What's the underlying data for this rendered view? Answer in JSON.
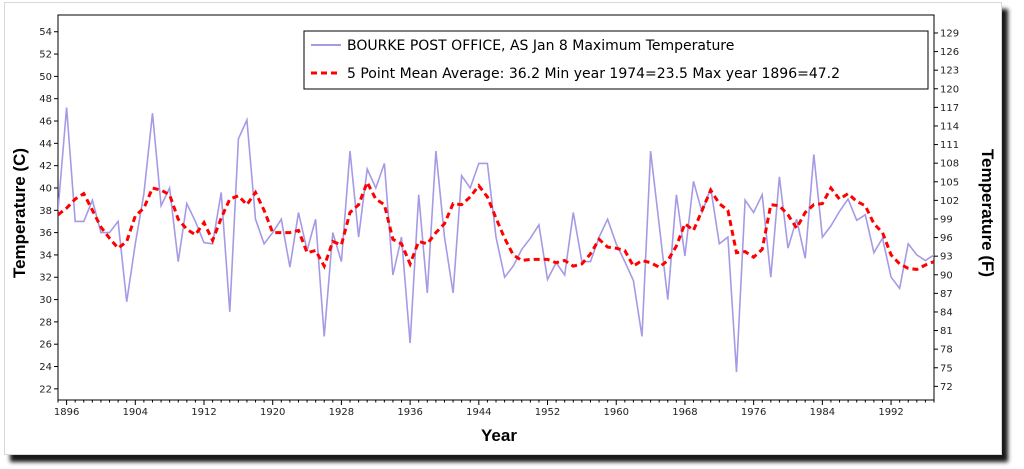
{
  "chart_data": {
    "type": "line",
    "xlabel": "Year",
    "ylabel": "Temperature (C)",
    "ylabel_right": "Temperature (F)",
    "xlim": [
      1895,
      1997
    ],
    "ylim": [
      21,
      55.5
    ],
    "x_ticks": [
      "1896",
      "1904",
      "1912",
      "1920",
      "1928",
      "1936",
      "1944",
      "1952",
      "1960",
      "1968",
      "1976",
      "1984",
      "1992"
    ],
    "y_ticks": [
      "22",
      "24",
      "26",
      "28",
      "30",
      "32",
      "34",
      "36",
      "38",
      "40",
      "42",
      "44",
      "46",
      "48",
      "50",
      "52",
      "54"
    ],
    "y_ticks_right": [
      "72",
      "75",
      "78",
      "81",
      "84",
      "87",
      "90",
      "93",
      "96",
      "99",
      "102",
      "105",
      "108",
      "111",
      "114",
      "117",
      "120",
      "123",
      "126",
      "129"
    ],
    "grid": false,
    "legend_position": "top-right",
    "colors": {
      "raw": "#a69ae6",
      "mean": "#ff0000"
    },
    "series": [
      {
        "name": "BOURKE POST OFFICE, AS  Jan 8  Maximum Temperature",
        "style": "solid",
        "x": [
          1895,
          1896,
          1897,
          1898,
          1899,
          1900,
          1901,
          1902,
          1903,
          1904,
          1905,
          1906,
          1907,
          1908,
          1909,
          1910,
          1911,
          1912,
          1913,
          1914,
          1915,
          1916,
          1917,
          1918,
          1919,
          1920,
          1921,
          1922,
          1923,
          1924,
          1925,
          1926,
          1927,
          1928,
          1929,
          1930,
          1931,
          1932,
          1933,
          1934,
          1935,
          1936,
          1937,
          1938,
          1939,
          1940,
          1941,
          1942,
          1943,
          1944,
          1945,
          1946,
          1947,
          1948,
          1949,
          1950,
          1951,
          1952,
          1953,
          1954,
          1955,
          1956,
          1957,
          1958,
          1959,
          1960,
          1961,
          1962,
          1963,
          1964,
          1965,
          1966,
          1967,
          1968,
          1969,
          1970,
          1971,
          1972,
          1973,
          1974,
          1975,
          1976,
          1977,
          1978,
          1979,
          1980,
          1981,
          1982,
          1983,
          1984,
          1985,
          1986,
          1987,
          1988,
          1989,
          1990,
          1991,
          1992,
          1993,
          1994,
          1995,
          1996,
          1997
        ],
        "values": [
          38.0,
          47.2,
          37.0,
          37.0,
          38.9,
          36.0,
          36.0,
          37.0,
          29.8,
          35.0,
          39.5,
          46.7,
          38.4,
          40.0,
          33.4,
          38.6,
          37.0,
          35.1,
          35.0,
          39.6,
          28.9,
          44.4,
          46.1,
          37.2,
          35.0,
          36.0,
          37.2,
          32.9,
          37.8,
          34.4,
          37.2,
          26.7,
          36.0,
          33.4,
          43.3,
          35.6,
          41.7,
          40.0,
          42.2,
          32.2,
          35.6,
          26.1,
          39.4,
          30.6,
          43.3,
          35.6,
          30.6,
          41.1,
          40.0,
          42.2,
          42.2,
          35.6,
          32.0,
          33.0,
          34.5,
          35.5,
          36.7,
          31.8,
          33.3,
          32.2,
          37.8,
          33.4,
          33.4,
          35.6,
          37.2,
          35.0,
          33.4,
          31.7,
          26.7,
          43.3,
          36.7,
          30.0,
          39.4,
          33.9,
          40.6,
          37.8,
          40.0,
          35.0,
          35.6,
          23.5,
          38.9,
          37.8,
          39.4,
          32.0,
          41.0,
          34.6,
          37.2,
          33.7,
          43.0,
          35.6,
          36.6,
          37.9,
          39.0,
          37.1,
          37.6,
          34.2,
          35.5,
          32.0,
          31.0,
          35.0,
          34.0,
          33.5,
          34.0
        ]
      },
      {
        "name": "5 Point Mean  Average: 36.2  Min year 1974=23.5  Max year 1896=47.2",
        "style": "dashed",
        "x": [
          1895,
          1896,
          1897,
          1898,
          1899,
          1900,
          1901,
          1902,
          1903,
          1904,
          1905,
          1906,
          1907,
          1908,
          1909,
          1910,
          1911,
          1912,
          1913,
          1914,
          1915,
          1916,
          1917,
          1918,
          1919,
          1920,
          1921,
          1922,
          1923,
          1924,
          1925,
          1926,
          1927,
          1928,
          1929,
          1930,
          1931,
          1932,
          1933,
          1934,
          1935,
          1936,
          1937,
          1938,
          1939,
          1940,
          1941,
          1942,
          1943,
          1944,
          1945,
          1946,
          1947,
          1948,
          1949,
          1950,
          1951,
          1952,
          1953,
          1954,
          1955,
          1956,
          1957,
          1958,
          1959,
          1960,
          1961,
          1962,
          1963,
          1964,
          1965,
          1966,
          1967,
          1968,
          1969,
          1970,
          1971,
          1972,
          1973,
          1974,
          1975,
          1976,
          1977,
          1978,
          1979,
          1980,
          1981,
          1982,
          1983,
          1984,
          1985,
          1986,
          1987,
          1988,
          1989,
          1990,
          1991,
          1992,
          1993,
          1994,
          1995,
          1996,
          1997
        ],
        "values": [
          37.6,
          38.2,
          39.0,
          39.5,
          38.0,
          36.5,
          35.5,
          34.6,
          35.2,
          37.5,
          38.2,
          40.0,
          39.8,
          39.4,
          37.2,
          36.3,
          35.8,
          36.9,
          35.3,
          37.3,
          39.0,
          39.3,
          38.5,
          39.6,
          38.0,
          36.0,
          36.0,
          36.0,
          36.2,
          34.2,
          34.4,
          33.0,
          35.2,
          34.9,
          37.8,
          38.5,
          40.5,
          39.0,
          38.5,
          35.4,
          35.0,
          33.2,
          35.2,
          35.0,
          36.0,
          36.8,
          38.6,
          38.5,
          39.2,
          40.2,
          39.2,
          37.3,
          35.5,
          34.0,
          33.5,
          33.6,
          33.6,
          33.6,
          33.3,
          33.5,
          33.0,
          33.2,
          34.1,
          35.4,
          34.7,
          34.6,
          34.4,
          33.0,
          33.5,
          33.3,
          32.9,
          33.5,
          34.8,
          36.8,
          36.2,
          38.0,
          39.8,
          38.6,
          38.0,
          34.2,
          34.3,
          33.8,
          34.5,
          38.5,
          38.4,
          37.6,
          36.4,
          37.8,
          38.5,
          38.6,
          40.0,
          39.0,
          39.5,
          38.8,
          38.4,
          36.8,
          36.0,
          34.0,
          33.2,
          32.8,
          32.7,
          33.1,
          33.4
        ]
      }
    ]
  }
}
